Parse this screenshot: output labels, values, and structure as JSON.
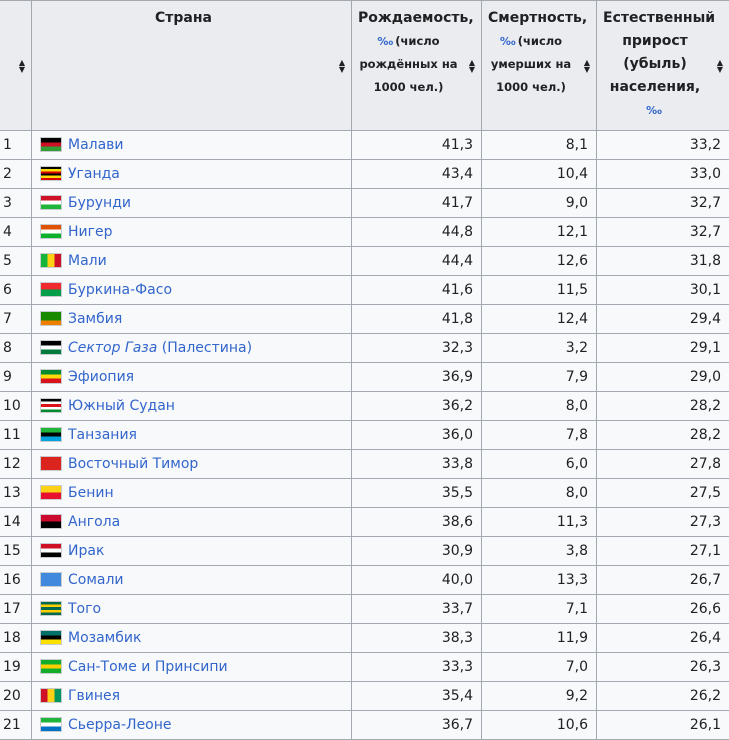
{
  "headers": {
    "country": "Страна",
    "birth_title": "Рождаемость,",
    "birth_unit": "‰",
    "birth_sub": "(число рождённых на 1000 чел.)",
    "death_title": "Смертность,",
    "death_unit": "‰",
    "death_sub": "(число умерших на 1000 чел.)",
    "growth_title": "Естественный прирост (убыль) населения,",
    "growth_unit": "‰"
  },
  "rows": [
    {
      "n": "1",
      "country": "Малави",
      "suffix": "",
      "italic": false,
      "birth": "41,3",
      "death": "8,1",
      "growth": "33,2",
      "flag": [
        "#000000",
        "#ce1126",
        "#339e35"
      ]
    },
    {
      "n": "2",
      "country": "Уганда",
      "suffix": "",
      "italic": false,
      "birth": "43,4",
      "death": "10,4",
      "growth": "33,0",
      "flag": [
        "#000000",
        "#fcdc04",
        "#d90000",
        "#000000",
        "#fcdc04",
        "#d90000"
      ]
    },
    {
      "n": "3",
      "country": "Бурунди",
      "suffix": "",
      "italic": false,
      "birth": "41,7",
      "death": "9,0",
      "growth": "32,7",
      "flag": [
        "#ce1126",
        "#ffffff",
        "#1eb53a"
      ]
    },
    {
      "n": "4",
      "country": "Нигер",
      "suffix": "",
      "italic": false,
      "birth": "44,8",
      "death": "12,1",
      "growth": "32,7",
      "flag": [
        "#e05206",
        "#ffffff",
        "#0db02b"
      ]
    },
    {
      "n": "5",
      "country": "Мали",
      "suffix": "",
      "italic": false,
      "birth": "44,4",
      "death": "12,6",
      "growth": "31,8",
      "flag": [
        "#14b53a",
        "#fcd116",
        "#ce1126"
      ],
      "vertical": true
    },
    {
      "n": "6",
      "country": "Буркина-Фасо",
      "suffix": "",
      "italic": false,
      "birth": "41,6",
      "death": "11,5",
      "growth": "30,1",
      "flag": [
        "#ef2b2d",
        "#009e49"
      ]
    },
    {
      "n": "7",
      "country": "Замбия",
      "suffix": "",
      "italic": false,
      "birth": "41,8",
      "death": "12,4",
      "growth": "29,4",
      "flag": [
        "#198a00",
        "#198a00",
        "#ef7d00"
      ]
    },
    {
      "n": "8",
      "country": "Сектор Газа",
      "suffix": " (Палестина)",
      "italic": true,
      "birth": "32,3",
      "death": "3,2",
      "growth": "29,1",
      "flag": [
        "#000000",
        "#ffffff",
        "#007a3d"
      ]
    },
    {
      "n": "9",
      "country": "Эфиопия",
      "suffix": "",
      "italic": false,
      "birth": "36,9",
      "death": "7,9",
      "growth": "29,0",
      "flag": [
        "#078930",
        "#fcdd09",
        "#da121a"
      ]
    },
    {
      "n": "10",
      "country": "Южный Судан",
      "suffix": "",
      "italic": false,
      "birth": "36,2",
      "death": "8,0",
      "growth": "28,2",
      "flag": [
        "#000000",
        "#ffffff",
        "#da121a",
        "#ffffff",
        "#078930"
      ]
    },
    {
      "n": "11",
      "country": "Танзания",
      "suffix": "",
      "italic": false,
      "birth": "36,0",
      "death": "7,8",
      "growth": "28,2",
      "flag": [
        "#1eb53a",
        "#000000",
        "#00a3dd"
      ]
    },
    {
      "n": "12",
      "country": "Восточный Тимор",
      "suffix": "",
      "italic": false,
      "birth": "33,8",
      "death": "6,0",
      "growth": "27,8",
      "flag": [
        "#dc241f",
        "#dc241f",
        "#dc241f"
      ]
    },
    {
      "n": "13",
      "country": "Бенин",
      "suffix": "",
      "italic": false,
      "birth": "35,5",
      "death": "8,0",
      "growth": "27,5",
      "flag": [
        "#fcd116",
        "#e8112d"
      ]
    },
    {
      "n": "14",
      "country": "Ангола",
      "suffix": "",
      "italic": false,
      "birth": "38,6",
      "death": "11,3",
      "growth": "27,3",
      "flag": [
        "#cc092f",
        "#000000"
      ]
    },
    {
      "n": "15",
      "country": "Ирак",
      "suffix": "",
      "italic": false,
      "birth": "30,9",
      "death": "3,8",
      "growth": "27,1",
      "flag": [
        "#ce1126",
        "#ffffff",
        "#000000"
      ]
    },
    {
      "n": "16",
      "country": "Сомали",
      "suffix": "",
      "italic": false,
      "birth": "40,0",
      "death": "13,3",
      "growth": "26,7",
      "flag": [
        "#4189dd",
        "#4189dd",
        "#4189dd"
      ]
    },
    {
      "n": "17",
      "country": "Того",
      "suffix": "",
      "italic": false,
      "birth": "33,7",
      "death": "7,1",
      "growth": "26,6",
      "flag": [
        "#006a4e",
        "#ffce00",
        "#006a4e",
        "#ffce00",
        "#006a4e"
      ]
    },
    {
      "n": "18",
      "country": "Мозамбик",
      "suffix": "",
      "italic": false,
      "birth": "38,3",
      "death": "11,9",
      "growth": "26,4",
      "flag": [
        "#007168",
        "#000000",
        "#fce100"
      ]
    },
    {
      "n": "19",
      "country": "Сан-Томе и Принсипи",
      "suffix": "",
      "italic": false,
      "birth": "33,3",
      "death": "7,0",
      "growth": "26,3",
      "flag": [
        "#12ad2b",
        "#ffce00",
        "#12ad2b"
      ]
    },
    {
      "n": "20",
      "country": "Гвинея",
      "suffix": "",
      "italic": false,
      "birth": "35,4",
      "death": "9,2",
      "growth": "26,2",
      "flag": [
        "#ce1126",
        "#fcd116",
        "#009460"
      ],
      "vertical": true
    },
    {
      "n": "21",
      "country": "Сьерра-Леоне",
      "suffix": "",
      "italic": false,
      "birth": "36,7",
      "death": "10,6",
      "growth": "26,1",
      "flag": [
        "#1eb53a",
        "#ffffff",
        "#0072c6"
      ]
    }
  ]
}
